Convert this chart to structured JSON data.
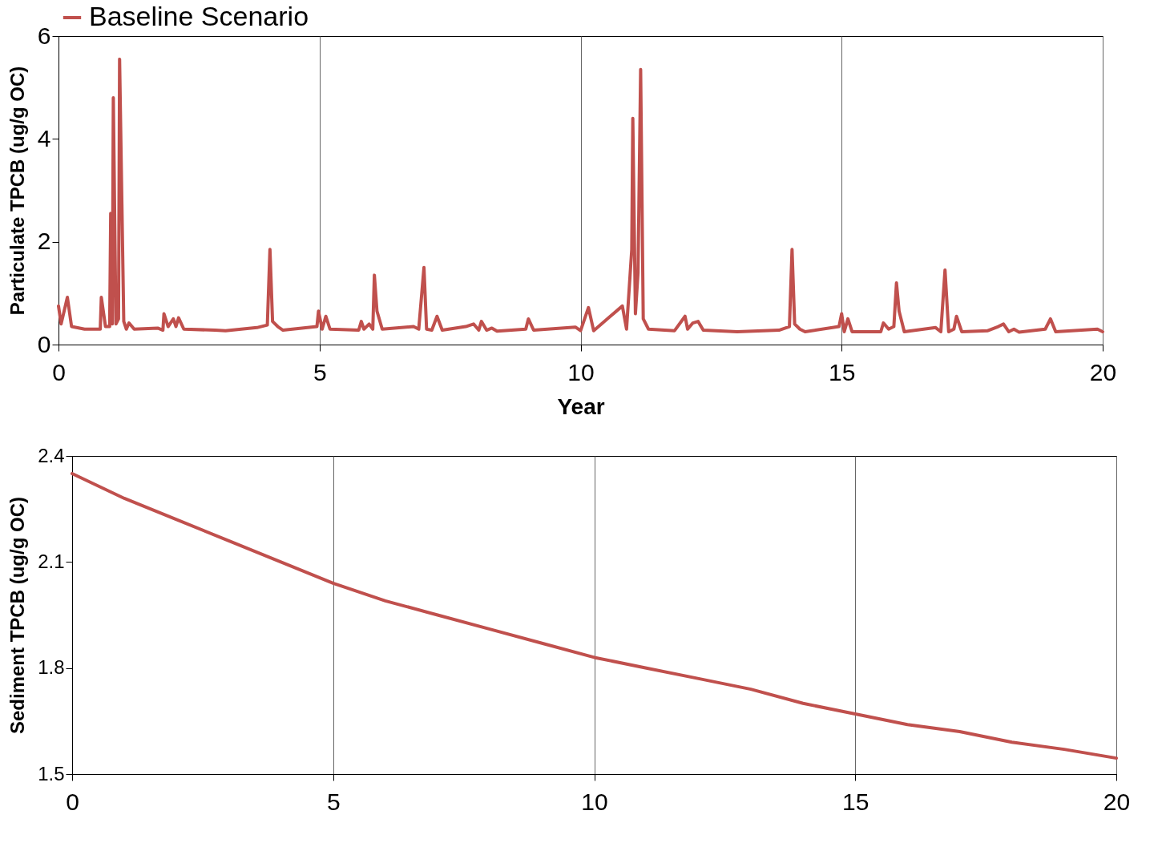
{
  "chart_data": [
    {
      "type": "line",
      "xlabel": "Year",
      "ylabel": "Particulate TPCB (ug/g OC)",
      "xlim": [
        0,
        20
      ],
      "xticks": [
        0,
        5,
        10,
        15,
        20
      ],
      "ylim": [
        0,
        6
      ],
      "yticks": [
        0,
        2,
        4,
        6
      ],
      "grid": "x",
      "legend": "top",
      "line_style": "solid",
      "series": [
        {
          "name": "Baseline Scenario",
          "color": "#c0504d",
          "x": [
            0,
            0.05,
            0.17,
            0.25,
            0.5,
            0.8,
            0.82,
            0.9,
            0.98,
            1.0,
            1.03,
            1.05,
            1.1,
            1.15,
            1.17,
            1.25,
            1.3,
            1.35,
            1.45,
            1.9,
            2.0,
            2.02,
            2.1,
            2.2,
            2.25,
            2.3,
            2.4,
            3.0,
            3.2,
            3.8,
            4.0,
            4.05,
            4.1,
            4.2,
            4.3,
            4.95,
            4.98,
            5.05,
            5.12,
            5.2,
            5.75,
            5.8,
            5.85,
            5.95,
            6.02,
            6.05,
            6.1,
            6.2,
            6.8,
            6.9,
            7.0,
            7.05,
            7.15,
            7.25,
            7.35,
            7.8,
            7.95,
            8.05,
            8.1,
            8.2,
            8.3,
            8.4,
            8.95,
            9.0,
            9.1,
            9.9,
            10.0,
            10.15,
            10.25,
            10.8,
            10.88,
            10.98,
            11.0,
            11.05,
            11.1,
            11.15,
            11.2,
            11.3,
            11.8,
            12.0,
            12.05,
            12.15,
            12.25,
            12.35,
            13.0,
            13.8,
            14.0,
            14.05,
            14.1,
            14.2,
            14.3,
            14.95,
            15.0,
            15.05,
            15.12,
            15.2,
            15.75,
            15.8,
            15.9,
            16.0,
            16.05,
            16.1,
            16.2,
            16.8,
            16.9,
            16.98,
            17.05,
            17.15,
            17.2,
            17.3,
            17.8,
            18.0,
            18.1,
            18.2,
            18.3,
            18.4,
            18.9,
            19.0,
            19.1,
            19.9,
            20.0
          ],
          "values": [
            0.75,
            0.4,
            0.92,
            0.35,
            0.3,
            0.3,
            0.92,
            0.35,
            0.35,
            2.55,
            0.4,
            4.8,
            0.4,
            0.5,
            5.55,
            0.45,
            0.3,
            0.42,
            0.3,
            0.32,
            0.28,
            0.6,
            0.35,
            0.5,
            0.35,
            0.52,
            0.3,
            0.28,
            0.27,
            0.33,
            0.38,
            1.85,
            0.45,
            0.35,
            0.28,
            0.35,
            0.65,
            0.3,
            0.55,
            0.3,
            0.28,
            0.45,
            0.3,
            0.4,
            0.3,
            1.35,
            0.65,
            0.3,
            0.35,
            0.3,
            1.5,
            0.3,
            0.28,
            0.55,
            0.28,
            0.35,
            0.4,
            0.28,
            0.45,
            0.28,
            0.32,
            0.26,
            0.3,
            0.5,
            0.28,
            0.34,
            0.27,
            0.72,
            0.27,
            0.75,
            0.3,
            1.85,
            4.4,
            0.6,
            1.4,
            5.35,
            0.5,
            0.3,
            0.27,
            0.55,
            0.3,
            0.42,
            0.45,
            0.28,
            0.25,
            0.28,
            0.35,
            1.85,
            0.4,
            0.3,
            0.25,
            0.35,
            0.6,
            0.25,
            0.5,
            0.25,
            0.25,
            0.42,
            0.3,
            0.35,
            1.2,
            0.65,
            0.25,
            0.33,
            0.25,
            1.45,
            0.25,
            0.3,
            0.55,
            0.25,
            0.27,
            0.35,
            0.4,
            0.25,
            0.3,
            0.24,
            0.3,
            0.5,
            0.25,
            0.3,
            0.25
          ]
        }
      ]
    },
    {
      "type": "line",
      "ylabel": "Sediment TPCB (ug/g OC)",
      "xlim": [
        0,
        20
      ],
      "xticks": [
        0,
        5,
        10,
        15,
        20
      ],
      "ylim": [
        1.5,
        2.4
      ],
      "yticks": [
        1.5,
        1.8,
        2.1,
        2.4
      ],
      "grid": "x",
      "line_style": "solid",
      "series": [
        {
          "color": "#c0504d",
          "x": [
            0,
            1,
            2,
            3,
            4,
            5,
            6,
            7,
            8,
            9,
            10,
            11,
            12,
            13,
            14,
            15,
            16,
            17,
            18,
            19,
            20
          ],
          "values": [
            2.35,
            2.28,
            2.22,
            2.16,
            2.1,
            2.04,
            1.99,
            1.95,
            1.91,
            1.87,
            1.83,
            1.8,
            1.77,
            1.74,
            1.7,
            1.67,
            1.64,
            1.62,
            1.59,
            1.57,
            1.545
          ]
        }
      ]
    }
  ]
}
